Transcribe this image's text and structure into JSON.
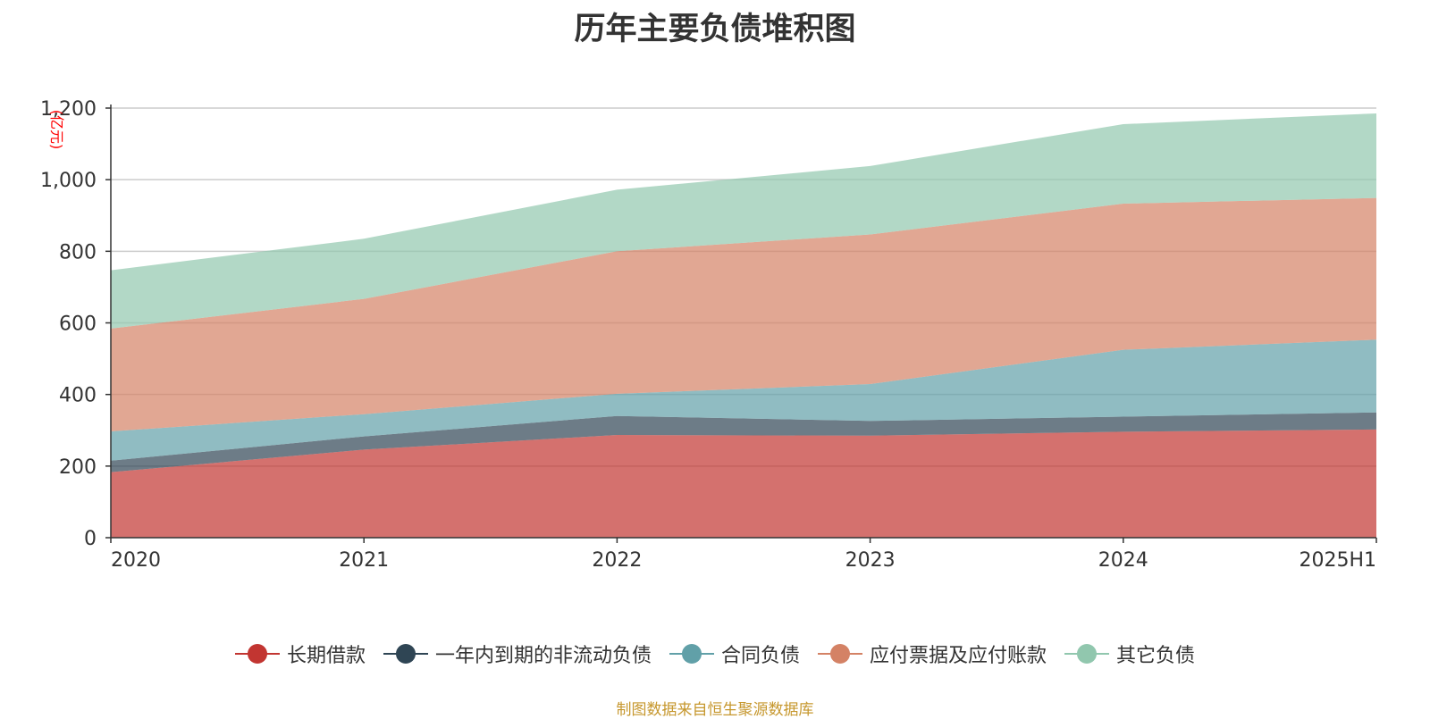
{
  "chart_data": {
    "type": "area",
    "stacked": true,
    "title": "历年主要负债堆积图",
    "ylabel": "(亿元)",
    "xlabel": "",
    "categories": [
      "2020",
      "2021",
      "2022",
      "2023",
      "2024",
      "2025H1"
    ],
    "ylim": [
      0,
      1200
    ],
    "yticks": [
      0,
      200,
      400,
      600,
      800,
      1000,
      1200
    ],
    "ytick_labels": [
      "0",
      "200",
      "400",
      "600",
      "800",
      "1,000",
      "1,200"
    ],
    "grid": true,
    "legend_position": "bottom",
    "series": [
      {
        "name": "长期借款",
        "color": "#c23531",
        "values": [
          183,
          246,
          287,
          285,
          296,
          302
        ]
      },
      {
        "name": "一年内到期的非流动负债",
        "color": "#2f4554",
        "values": [
          32,
          37,
          53,
          41,
          42,
          48
        ]
      },
      {
        "name": "合同负债",
        "color": "#61a0a8",
        "values": [
          82,
          62,
          62,
          103,
          187,
          203
        ]
      },
      {
        "name": "应付票据及应付账款",
        "color": "#d48265",
        "values": [
          287,
          322,
          398,
          418,
          408,
          396
        ]
      },
      {
        "name": "其它负债",
        "color": "#91c7ae",
        "values": [
          163,
          168,
          172,
          191,
          222,
          236
        ]
      }
    ]
  },
  "source_note": "制图数据来自恒生聚源数据库"
}
